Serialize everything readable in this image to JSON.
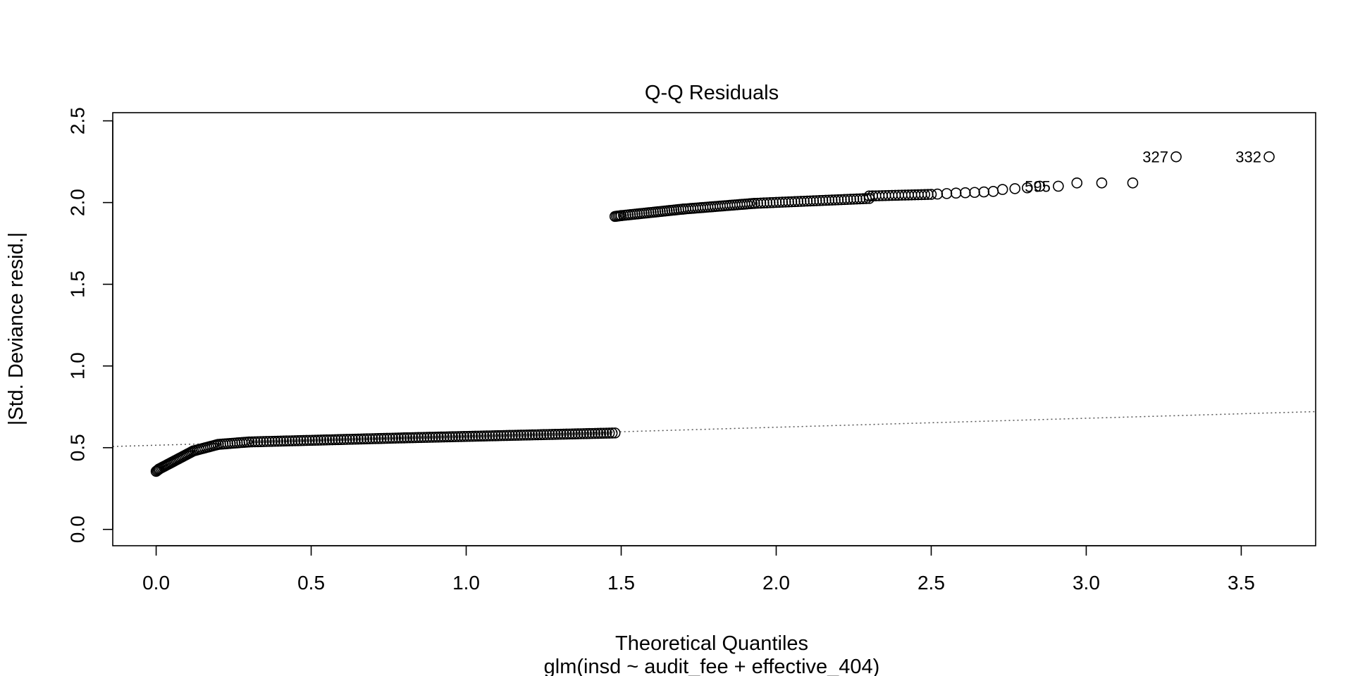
{
  "chart_data": {
    "type": "scatter",
    "title": "Q-Q Residuals",
    "xlabel": "Theoretical Quantiles",
    "subtitle": "glm(insd ~ audit_fee + effective_404)",
    "ylabel": "|Std. Deviance resid.|",
    "xlim": [
      -0.14,
      3.74
    ],
    "ylim": [
      -0.1,
      2.55
    ],
    "x_ticks": [
      0.0,
      0.5,
      1.0,
      1.5,
      2.0,
      2.5,
      3.0,
      3.5
    ],
    "x_tick_labels": [
      "0.0",
      "0.5",
      "1.0",
      "1.5",
      "2.0",
      "2.5",
      "3.0",
      "3.5"
    ],
    "y_ticks": [
      0.0,
      0.5,
      1.0,
      1.5,
      2.0,
      2.5
    ],
    "y_tick_labels": [
      "0.0",
      "0.5",
      "1.0",
      "1.5",
      "2.0",
      "2.5"
    ],
    "grid": false,
    "reference_line": {
      "intercept": 0.515,
      "slope": 0.055,
      "style": "dotted",
      "color": "#555555"
    },
    "marker": "open-circle",
    "dense_segments": [
      {
        "x_from": 0.0,
        "x_to": 0.01,
        "y_from": 0.355,
        "y_to": 0.37,
        "n": 4
      },
      {
        "x_from": 0.01,
        "x_to": 0.05,
        "y_from": 0.37,
        "y_to": 0.41,
        "n": 10
      },
      {
        "x_from": 0.05,
        "x_to": 0.12,
        "y_from": 0.41,
        "y_to": 0.48,
        "n": 16
      },
      {
        "x_from": 0.12,
        "x_to": 0.2,
        "y_from": 0.48,
        "y_to": 0.52,
        "n": 14
      },
      {
        "x_from": 0.2,
        "x_to": 0.3,
        "y_from": 0.52,
        "y_to": 0.535,
        "n": 14
      },
      {
        "x_from": 0.3,
        "x_to": 0.8,
        "y_from": 0.535,
        "y_to": 0.56,
        "n": 55
      },
      {
        "x_from": 0.8,
        "x_to": 1.48,
        "y_from": 0.56,
        "y_to": 0.59,
        "n": 75
      },
      {
        "x_from": 1.48,
        "x_to": 1.5,
        "y_from": 1.915,
        "y_to": 1.92,
        "n": 5
      },
      {
        "x_from": 1.5,
        "x_to": 1.7,
        "y_from": 1.92,
        "y_to": 1.96,
        "n": 28
      },
      {
        "x_from": 1.7,
        "x_to": 1.93,
        "y_from": 1.96,
        "y_to": 1.995,
        "n": 30
      },
      {
        "x_from": 1.93,
        "x_to": 2.3,
        "y_from": 1.995,
        "y_to": 2.025,
        "n": 38
      },
      {
        "x_from": 2.3,
        "x_to": 2.5,
        "y_from": 2.04,
        "y_to": 2.05,
        "n": 20
      }
    ],
    "points": [
      {
        "x": 2.52,
        "y": 2.052
      },
      {
        "x": 2.55,
        "y": 2.055
      },
      {
        "x": 2.58,
        "y": 2.058
      },
      {
        "x": 2.61,
        "y": 2.06
      },
      {
        "x": 2.64,
        "y": 2.062
      },
      {
        "x": 2.67,
        "y": 2.065
      },
      {
        "x": 2.7,
        "y": 2.068
      },
      {
        "x": 2.73,
        "y": 2.08
      },
      {
        "x": 2.77,
        "y": 2.085
      },
      {
        "x": 2.81,
        "y": 2.09
      },
      {
        "x": 2.85,
        "y": 2.1
      },
      {
        "x": 2.91,
        "y": 2.1
      },
      {
        "x": 2.97,
        "y": 2.12
      },
      {
        "x": 3.05,
        "y": 2.12
      },
      {
        "x": 3.15,
        "y": 2.12
      },
      {
        "x": 3.29,
        "y": 2.28
      },
      {
        "x": 3.59,
        "y": 2.28
      }
    ],
    "point_labels": [
      {
        "text": "595",
        "x": 2.91,
        "y": 2.1
      },
      {
        "text": "327",
        "x": 3.29,
        "y": 2.28
      },
      {
        "text": "332",
        "x": 3.59,
        "y": 2.28
      }
    ]
  }
}
